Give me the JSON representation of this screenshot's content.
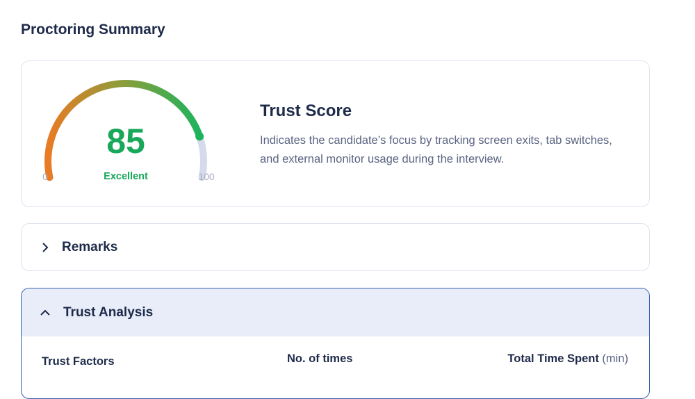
{
  "page_title": "Proctoring Summary",
  "trust_score": {
    "value": 85,
    "value_text": "85",
    "rating": "Excellent",
    "min_label": "0",
    "max_label": "100",
    "min": 0,
    "max": 100,
    "title": "Trust Score",
    "description": "Indicates the candidate’s focus by tracking screen exits, tab switches, and external monitor usage during the interview.",
    "colors": {
      "start": "#e97b25",
      "mid": "#8a9e3a",
      "end": "#1db35c",
      "track": "#d5dbea",
      "score_text": "#17a85a"
    }
  },
  "remarks": {
    "label": "Remarks",
    "icon": "chevron-right-icon",
    "expanded": false
  },
  "trust_analysis": {
    "label": "Trust Analysis",
    "icon": "chevron-up-icon",
    "expanded": true,
    "columns": {
      "factors": "Trust Factors",
      "times": "No. of times",
      "time_spent": "Total Time Spent",
      "time_unit": "(min)"
    }
  }
}
